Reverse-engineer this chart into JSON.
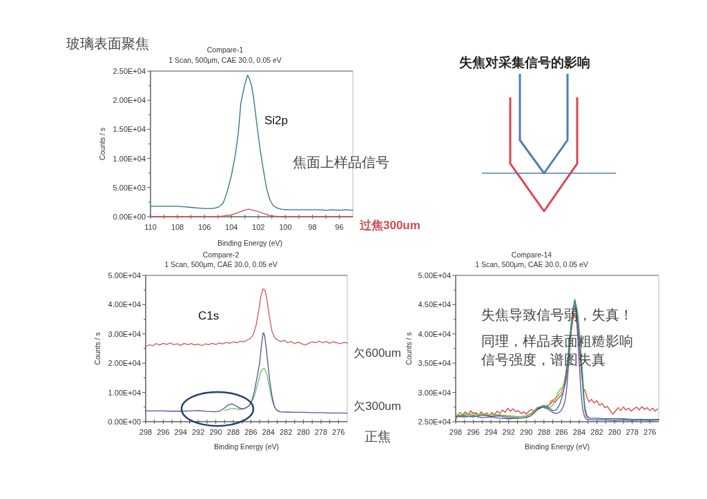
{
  "chart_data": [
    {
      "type": "line",
      "title": "Compare-1",
      "subtitle": "1 Scan, 500μm, CAE 30.0, 0.05 eV",
      "xlabel": "Binding Energy (eV)",
      "ylabel": "Counts / s",
      "xlim": [
        110,
        95
      ],
      "ylim": [
        0,
        25000
      ],
      "xticks": [
        110,
        {
          "value": 109,
          "label": null
        },
        108,
        {
          "value": 107,
          "label": null
        },
        106,
        {
          "value": 105,
          "label": null
        },
        104,
        {
          "value": 103,
          "label": null
        },
        102,
        {
          "value": 101,
          "label": null
        },
        100,
        {
          "value": 99,
          "label": null
        },
        98,
        {
          "value": 97,
          "label": null
        },
        96
      ],
      "yticks": [
        {
          "value": 0,
          "label": "0.00E+00"
        },
        {
          "value": 2500,
          "label": null
        },
        {
          "value": 5000,
          "label": "5.00E+03"
        },
        {
          "value": 7500,
          "label": null
        },
        {
          "value": 10000,
          "label": "1.00E+04"
        },
        {
          "value": 12500,
          "label": null
        },
        {
          "value": 15000,
          "label": "1.50E+04"
        },
        {
          "value": 17500,
          "label": null
        },
        {
          "value": 20000,
          "label": "2.00E+04"
        },
        {
          "value": 22500,
          "label": null
        },
        {
          "value": 25000,
          "label": "2.50E+04"
        }
      ],
      "series": [
        {
          "color": "#2f6f84",
          "x": [
            110,
            109.5,
            109,
            108.5,
            108,
            107.5,
            107,
            106.5,
            106,
            105.5,
            105.2,
            104.9,
            104.6,
            104.3,
            104,
            103.7,
            103.5,
            103.3,
            103.1,
            102.95,
            102.8,
            102.65,
            102.5,
            102.35,
            102.15,
            101.9,
            101.65,
            101.4,
            101.15,
            100.9,
            100.6,
            100.3,
            100,
            99.5,
            99,
            98.5,
            98,
            97.5,
            97,
            96.5,
            96,
            95.5,
            95
          ],
          "values": [
            1800,
            1800,
            1800,
            1800,
            1800,
            1700,
            1600,
            1500,
            1400,
            1400,
            1500,
            1700,
            2400,
            4400,
            7100,
            10800,
            14200,
            19500,
            21800,
            23200,
            24300,
            23600,
            22400,
            20300,
            16500,
            12000,
            8300,
            4900,
            2900,
            1900,
            1500,
            1300,
            1200,
            1200,
            1200,
            1200,
            1200,
            1200,
            1100,
            1200,
            1100,
            1200,
            1100
          ]
        },
        {
          "name": "过焦300um",
          "color": "#d04a4f",
          "x": [
            110,
            108,
            106,
            105,
            104.4,
            104,
            103.6,
            103.2,
            102.9,
            102.7,
            102.4,
            102.2,
            101.9,
            101.7,
            101.4,
            101.2,
            100.8,
            100.4,
            99,
            97,
            95
          ],
          "values": [
            0,
            0,
            0,
            0,
            200,
            300,
            600,
            1000,
            1200,
            1300,
            1100,
            1000,
            800,
            600,
            400,
            200,
            100,
            0,
            0,
            0,
            0
          ]
        }
      ],
      "annotations": [
        "玻璃表面聚焦",
        "Si2p",
        "焦面上样品信号"
      ]
    },
    {
      "type": "other",
      "title": "失焦对采集信号的影响"
    },
    {
      "type": "line",
      "title": "Compare-2",
      "subtitle": "1 Scan, 500μm, CAE 30.0, 0.05 eV",
      "xlabel": "Binding Energy (eV)",
      "ylabel": "Counts / s",
      "xlim": [
        298,
        275
      ],
      "ylim": [
        0,
        50000
      ],
      "xticks": [
        298,
        {
          "value": 297,
          "label": null
        },
        296,
        {
          "value": 295,
          "label": null
        },
        294,
        {
          "value": 293,
          "label": null
        },
        292,
        {
          "value": 291,
          "label": null
        },
        290,
        {
          "value": 289,
          "label": null
        },
        288,
        {
          "value": 287,
          "label": null
        },
        286,
        {
          "value": 285,
          "label": null
        },
        284,
        {
          "value": 283,
          "label": null
        },
        282,
        {
          "value": 281,
          "label": null
        },
        280,
        {
          "value": 279,
          "label": null
        },
        278,
        {
          "value": 277,
          "label": null
        },
        276
      ],
      "yticks": [
        {
          "value": 0,
          "label": "0.00E+00"
        },
        {
          "value": 5000,
          "label": null
        },
        {
          "value": 10000,
          "label": "1.00E+04"
        },
        {
          "value": 15000,
          "label": null
        },
        {
          "value": 20000,
          "label": "2.00E+04"
        },
        {
          "value": 25000,
          "label": null
        },
        {
          "value": 30000,
          "label": "3.00E+04"
        },
        {
          "value": 35000,
          "label": null
        },
        {
          "value": 40000,
          "label": "4.00E+04"
        },
        {
          "value": 45000,
          "label": null
        },
        {
          "value": 50000,
          "label": "5.00E+04"
        }
      ],
      "series": [
        {
          "color": "#d4545a",
          "x": [
            298,
            297.6,
            297.2,
            296.8,
            296.4,
            296,
            295.6,
            295.2,
            294.8,
            294.4,
            294,
            293.6,
            293.2,
            292.8,
            292.4,
            292,
            291.6,
            291.2,
            290.8,
            290.4,
            290,
            289.6,
            289.2,
            288.8,
            288.4,
            288,
            287.6,
            287.2,
            286.8,
            286.4,
            286,
            285.7,
            285.4,
            285.1,
            284.85,
            284.6,
            284.4,
            284.15,
            283.9,
            283.6,
            283.3,
            283,
            282.6,
            282.2,
            281.8,
            281.4,
            281,
            280.6,
            280.2,
            279.8,
            279.4,
            279,
            278.6,
            278.2,
            277.8,
            277.4,
            277,
            276.6,
            276.2,
            275.8,
            275.4,
            275
          ],
          "values": [
            25700,
            26300,
            26000,
            26700,
            26200,
            26800,
            26400,
            26900,
            26300,
            26600,
            26100,
            26800,
            26300,
            26700,
            26200,
            26500,
            26000,
            26600,
            26300,
            26800,
            26400,
            26900,
            26600,
            27100,
            26800,
            27300,
            27000,
            27500,
            27300,
            27900,
            28600,
            30000,
            33000,
            38000,
            43000,
            45400,
            45000,
            41500,
            36000,
            31000,
            28800,
            28000,
            27400,
            27800,
            27000,
            27400,
            26700,
            27200,
            26600,
            26200,
            26800,
            27300,
            27000,
            27500,
            27000,
            27400,
            26800,
            27300,
            27000,
            26700,
            27100,
            26900
          ]
        },
        {
          "color": "#5cc85c",
          "x": [
            289,
            288.5,
            288,
            287.5,
            287,
            286.6,
            286.2,
            285.9,
            285.6,
            285.3,
            285,
            284.8,
            284.6,
            284.4,
            284.2,
            284,
            283.8,
            283.55,
            283.3,
            283.05,
            282.7
          ],
          "values": [
            3900,
            4300,
            4500,
            4300,
            4200,
            4600,
            5400,
            6800,
            8800,
            12000,
            15500,
            17500,
            18200,
            18000,
            16500,
            13500,
            10500,
            7000,
            5000,
            4000,
            3500
          ]
        },
        {
          "color": "#5a4a9e",
          "x": [
            298,
            297,
            296,
            295,
            294,
            293,
            292,
            291,
            290,
            289.5,
            289,
            288.6,
            288.2,
            287.8,
            287.4,
            287,
            286.6,
            286.2,
            285.9,
            285.6,
            285.3,
            285,
            284.8,
            284.6,
            284.45,
            284.25,
            284.05,
            283.85,
            283.6,
            283.35,
            283.1,
            282.7,
            282,
            281,
            280,
            279,
            278,
            277,
            276,
            275
          ],
          "values": [
            3700,
            3700,
            3700,
            3600,
            3600,
            3700,
            3800,
            3500,
            3400,
            3700,
            4700,
            5700,
            6100,
            5600,
            4800,
            4400,
            4700,
            5500,
            7000,
            10400,
            15000,
            20000,
            26000,
            30400,
            29800,
            25300,
            19500,
            14000,
            9000,
            5500,
            4000,
            3400,
            3300,
            3200,
            3200,
            3100,
            3100,
            3000,
            3000,
            2900
          ]
        }
      ],
      "annotations": [
        "C1s",
        "欠600um",
        "欠300um",
        "正焦"
      ]
    },
    {
      "type": "line",
      "title": "Compare-14",
      "subtitle": "1 Scan, 500μm, CAE 30.0, 0.05 eV",
      "xlabel": "Binding Energy (eV)",
      "ylabel": "Counts / s",
      "xlim": [
        298,
        275
      ],
      "ylim": [
        25000,
        50000
      ],
      "xticks": [
        298,
        {
          "value": 297,
          "label": null
        },
        296,
        {
          "value": 295,
          "label": null
        },
        294,
        {
          "value": 293,
          "label": null
        },
        292,
        {
          "value": 291,
          "label": null
        },
        290,
        {
          "value": 289,
          "label": null
        },
        288,
        {
          "value": 287,
          "label": null
        },
        286,
        {
          "value": 285,
          "label": null
        },
        284,
        {
          "value": 283,
          "label": null
        },
        282,
        {
          "value": 281,
          "label": null
        },
        280,
        {
          "value": 279,
          "label": null
        },
        278,
        {
          "value": 277,
          "label": null
        },
        276
      ],
      "yticks": [
        {
          "value": 25000,
          "label": "2.50E+04"
        },
        {
          "value": 27500,
          "label": null
        },
        {
          "value": 30000,
          "label": "3.00E+04"
        },
        {
          "value": 32500,
          "label": null
        },
        {
          "value": 35000,
          "label": "3.50E+04"
        },
        {
          "value": 37500,
          "label": null
        },
        {
          "value": 40000,
          "label": "4.00E+04"
        },
        {
          "value": 42500,
          "label": null
        },
        {
          "value": 45000,
          "label": "4.50E+04"
        },
        {
          "value": 47500,
          "label": null
        },
        {
          "value": 50000,
          "label": "5.00E+04"
        }
      ],
      "series": [
        {
          "color": "#d9403a",
          "x": [
            298,
            297.8,
            297.5,
            297.2,
            296.9,
            296.6,
            296.3,
            296,
            295.7,
            295.4,
            295.1,
            294.8,
            294.5,
            294.2,
            293.9,
            293.6,
            293.3,
            293,
            292.7,
            292.4,
            292.1,
            291.8,
            291.5,
            291.2,
            290.9,
            290.6,
            290.3,
            290,
            289.7,
            289.4,
            289.1,
            288.8,
            288.5,
            288.2,
            287.9,
            287.6,
            287.3,
            287,
            286.7,
            286.4,
            286.1,
            285.8,
            285.5,
            285.2,
            284.9,
            284.6,
            284.4,
            284.1,
            283.9,
            283.7,
            283.5,
            283.3,
            283.1,
            282.9,
            282.6,
            282.3,
            282,
            281.7,
            281.4,
            281.1,
            280.8,
            280.5,
            280.2,
            279.9,
            279.6,
            279.3,
            279,
            278.7,
            278.4,
            278.1,
            277.8,
            277.5,
            277.2,
            276.9,
            276.6,
            276.3,
            276,
            275.7,
            275.4,
            275.1
          ],
          "values": [
            25300,
            26000,
            26600,
            26100,
            26700,
            26200,
            26900,
            26300,
            26600,
            26100,
            26700,
            26200,
            26500,
            26000,
            26600,
            26200,
            26800,
            26400,
            27000,
            26600,
            27300,
            26800,
            27200,
            26700,
            26900,
            26400,
            26700,
            26300,
            26800,
            27100,
            26800,
            27400,
            27200,
            27600,
            27300,
            27800,
            28000,
            28600,
            28300,
            29000,
            29400,
            30200,
            32000,
            36000,
            40500,
            43500,
            43000,
            40000,
            36000,
            32500,
            30600,
            30200,
            29000,
            28400,
            28800,
            28200,
            28600,
            27800,
            28100,
            27400,
            27600,
            26900,
            26300,
            26800,
            27400,
            26900,
            27500,
            27000,
            27300,
            26800,
            27200,
            27500,
            27000,
            27600,
            27100,
            27400,
            26900,
            27300,
            26800,
            27200
          ]
        },
        {
          "color": "#e08a30",
          "x": [
            298,
            297,
            296,
            295,
            294,
            293,
            292,
            291,
            290,
            289.5,
            289,
            288.5,
            288,
            287.5,
            287.2,
            286.8,
            286.4,
            286,
            285.7,
            285.4,
            285.2,
            285,
            284.8,
            284.5,
            284.3,
            284.1,
            283.9,
            283.7,
            283.5,
            283.4,
            283.2,
            283
          ],
          "values": [
            26000,
            26200,
            26100,
            26300,
            26000,
            26200,
            25900,
            25800,
            26000,
            26400,
            27000,
            27500,
            27700,
            27600,
            28600,
            28900,
            29400,
            30200,
            31800,
            34500,
            36900,
            39500,
            42000,
            44700,
            43500,
            40500,
            37000,
            34100,
            30000,
            27000,
            25900,
            25600
          ]
        },
        {
          "color": "#6b45a8",
          "x": [
            298,
            297,
            296,
            295,
            294,
            293,
            292,
            291,
            290,
            289.5,
            289,
            288.5,
            288,
            287.5,
            287,
            286.7,
            286.4,
            286.1,
            285.8,
            285.6,
            285.4,
            285.2,
            285,
            284.8,
            284.5,
            284.3,
            284,
            283.8,
            283.6,
            283.4,
            283.2,
            282.5,
            281,
            280,
            279,
            278,
            277,
            276,
            275
          ],
          "values": [
            25900,
            25800,
            26000,
            25700,
            25800,
            25600,
            25500,
            25600,
            25700,
            26000,
            26700,
            27300,
            27500,
            27100,
            26600,
            26400,
            26500,
            26800,
            27600,
            28600,
            31000,
            34900,
            38800,
            42800,
            45200,
            42800,
            34900,
            30000,
            27000,
            25900,
            25400,
            25300,
            25300,
            25200,
            25300,
            25200,
            25300,
            25200,
            25300
          ]
        },
        {
          "color": "#4fc44f",
          "x": [
            298,
            297.5,
            297,
            296.5,
            296,
            295.5,
            295,
            294.5,
            294,
            293,
            292,
            291,
            290,
            289.5,
            289,
            288.5,
            288,
            287.5,
            287,
            286.7,
            286.4,
            286.1,
            285.8,
            285.5,
            285.3,
            285,
            284.8,
            284.5,
            284.3,
            284.1,
            283.9,
            283.7,
            283.5,
            283.4,
            283.2,
            283
          ],
          "values": [
            26300,
            26000,
            26500,
            26200,
            26600,
            26100,
            26400,
            26000,
            26300,
            26100,
            26000,
            25900,
            25900,
            26300,
            26900,
            27500,
            27600,
            27300,
            27800,
            28800,
            30000,
            30600,
            31000,
            33000,
            34900,
            39500,
            42800,
            45300,
            44500,
            42800,
            39000,
            34900,
            30500,
            27400,
            26200,
            25700
          ]
        },
        {
          "color": "#2d6f8e",
          "x": [
            298,
            297,
            296,
            295,
            294,
            293,
            292,
            291,
            290,
            289.5,
            289,
            288.5,
            288,
            287.5,
            287,
            286.6,
            286.2,
            285.9,
            285.6,
            285.3,
            285.1,
            284.9,
            284.7,
            284.5,
            284.3,
            284.1,
            283.9,
            283.7,
            283.5,
            283.3,
            283.1,
            282.8,
            282.2,
            281,
            280,
            279,
            278,
            277,
            276,
            275
          ],
          "values": [
            25900,
            26000,
            25800,
            26100,
            25900,
            26000,
            25700,
            25600,
            25700,
            26000,
            26700,
            27500,
            27800,
            27400,
            26900,
            27000,
            28000,
            29500,
            31800,
            35500,
            38900,
            42000,
            44400,
            45900,
            44400,
            41000,
            36900,
            33000,
            29000,
            27000,
            25900,
            25600,
            25600,
            25500,
            25500,
            25500,
            25400,
            25400,
            25400,
            25400
          ]
        }
      ],
      "annotations": [
        "失焦导致信号弱，失真！",
        "同理，样品表面粗糙影响",
        "信号强度，谱图失真"
      ]
    }
  ]
}
